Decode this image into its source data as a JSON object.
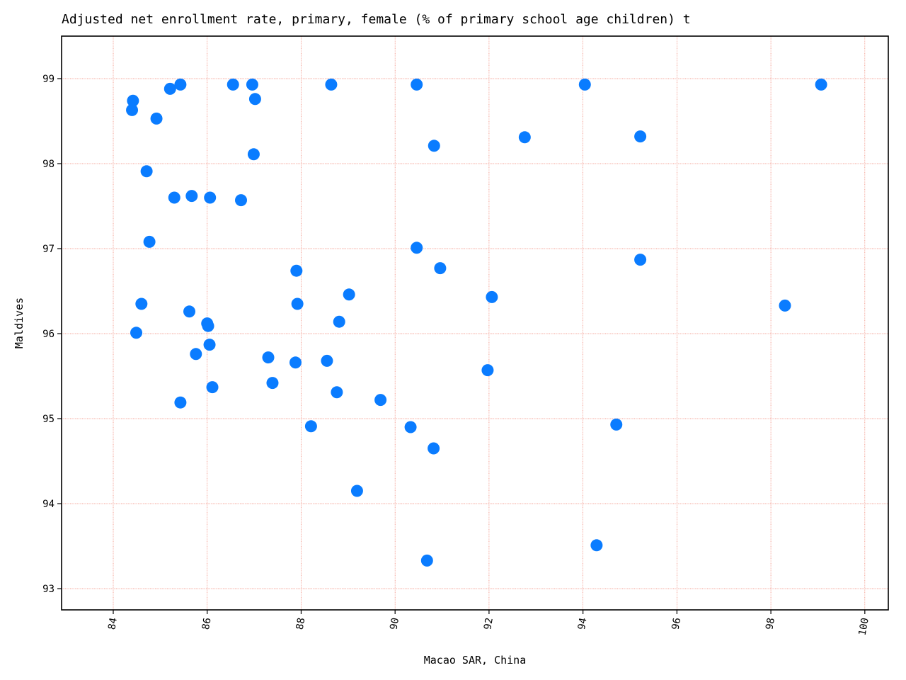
{
  "chart_data": {
    "type": "scatter",
    "title": "Adjusted net enrollment rate, primary, female (% of primary school age children) t",
    "xlabel": "Macao SAR, China",
    "ylabel": "Maldives",
    "xlim": [
      82.9,
      100.5
    ],
    "ylim": [
      92.75,
      99.5
    ],
    "xticks": [
      "84",
      "86",
      "88",
      "90",
      "92",
      "94",
      "96",
      "98",
      "100"
    ],
    "yticks": [
      "93",
      "94",
      "95",
      "96",
      "97",
      "98",
      "99"
    ],
    "grid": true,
    "colors": {
      "points": "#0a7cff",
      "grid": "#f08070",
      "axis": "#000000"
    },
    "points": [
      {
        "x": 84.4,
        "y": 98.63
      },
      {
        "x": 84.42,
        "y": 98.74
      },
      {
        "x": 84.92,
        "y": 98.53
      },
      {
        "x": 85.21,
        "y": 98.88
      },
      {
        "x": 85.43,
        "y": 98.93
      },
      {
        "x": 86.55,
        "y": 98.93
      },
      {
        "x": 86.96,
        "y": 98.93
      },
      {
        "x": 87.02,
        "y": 98.76
      },
      {
        "x": 88.64,
        "y": 98.93
      },
      {
        "x": 90.46,
        "y": 98.93
      },
      {
        "x": 94.04,
        "y": 98.93
      },
      {
        "x": 99.07,
        "y": 98.93
      },
      {
        "x": 86.99,
        "y": 98.11
      },
      {
        "x": 90.83,
        "y": 98.21
      },
      {
        "x": 92.76,
        "y": 98.31
      },
      {
        "x": 95.22,
        "y": 98.32
      },
      {
        "x": 84.71,
        "y": 97.91
      },
      {
        "x": 85.3,
        "y": 97.6
      },
      {
        "x": 85.67,
        "y": 97.62
      },
      {
        "x": 86.06,
        "y": 97.6
      },
      {
        "x": 86.72,
        "y": 97.57
      },
      {
        "x": 84.77,
        "y": 97.08
      },
      {
        "x": 90.46,
        "y": 97.01
      },
      {
        "x": 90.96,
        "y": 96.77
      },
      {
        "x": 95.22,
        "y": 96.87
      },
      {
        "x": 87.9,
        "y": 96.74
      },
      {
        "x": 89.02,
        "y": 96.46
      },
      {
        "x": 92.06,
        "y": 96.43
      },
      {
        "x": 98.3,
        "y": 96.33
      },
      {
        "x": 84.6,
        "y": 96.35
      },
      {
        "x": 85.62,
        "y": 96.26
      },
      {
        "x": 87.92,
        "y": 96.35
      },
      {
        "x": 88.81,
        "y": 96.14
      },
      {
        "x": 86.0,
        "y": 96.12
      },
      {
        "x": 86.02,
        "y": 96.09
      },
      {
        "x": 84.49,
        "y": 96.01
      },
      {
        "x": 86.05,
        "y": 95.87
      },
      {
        "x": 85.76,
        "y": 95.76
      },
      {
        "x": 87.3,
        "y": 95.72
      },
      {
        "x": 87.88,
        "y": 95.66
      },
      {
        "x": 88.55,
        "y": 95.68
      },
      {
        "x": 91.97,
        "y": 95.57
      },
      {
        "x": 86.11,
        "y": 95.37
      },
      {
        "x": 87.39,
        "y": 95.42
      },
      {
        "x": 88.76,
        "y": 95.31
      },
      {
        "x": 89.69,
        "y": 95.22
      },
      {
        "x": 85.43,
        "y": 95.19
      },
      {
        "x": 88.21,
        "y": 94.91
      },
      {
        "x": 90.33,
        "y": 94.9
      },
      {
        "x": 94.71,
        "y": 94.93
      },
      {
        "x": 90.82,
        "y": 94.65
      },
      {
        "x": 89.19,
        "y": 94.15
      },
      {
        "x": 94.29,
        "y": 93.51
      },
      {
        "x": 90.68,
        "y": 93.33
      }
    ]
  }
}
